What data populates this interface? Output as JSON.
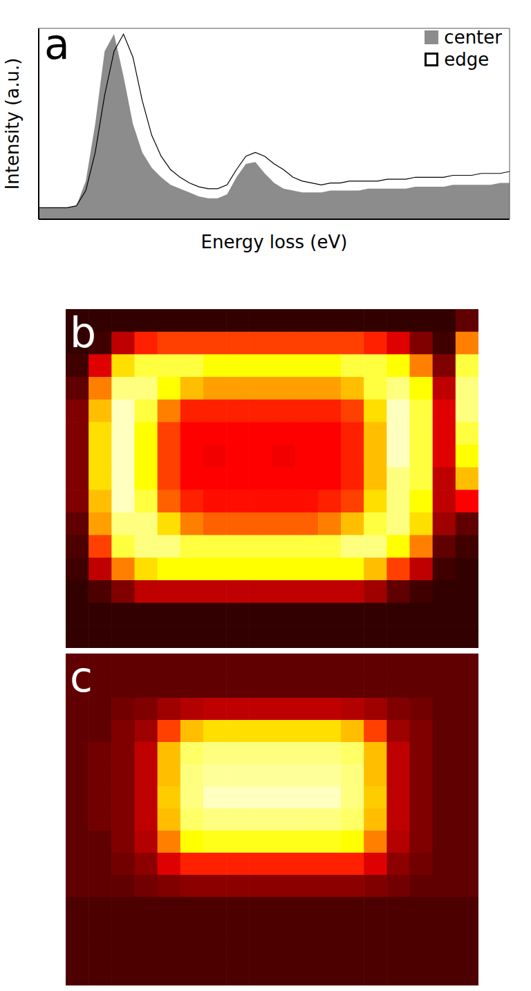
{
  "chart_data": [
    {
      "panel": "a",
      "type": "area",
      "x_label": "Energy loss (eV)",
      "y_label": "Intensity (a.u.)",
      "x": [
        0,
        2,
        4,
        6,
        8,
        10,
        12,
        14,
        16,
        18,
        20,
        22,
        24,
        26,
        28,
        30,
        32,
        34,
        36,
        38,
        40,
        42,
        44,
        46,
        48,
        50,
        52,
        54,
        56,
        58,
        60,
        62,
        64,
        66,
        68,
        70,
        72,
        74,
        76,
        78,
        80,
        82,
        84,
        86,
        88,
        90,
        92,
        94,
        96,
        98,
        100
      ],
      "xlim": [
        0,
        100
      ],
      "ylim": [
        0,
        100
      ],
      "xticks": [],
      "yticks": [],
      "tick_labels": false,
      "legend": "upper right",
      "series": [
        {
          "name": "center",
          "type": "area",
          "color": "#8c8c8c",
          "values": [
            6,
            6,
            6,
            6,
            7,
            20,
            50,
            88,
            97,
            75,
            50,
            35,
            27,
            22,
            18,
            16,
            14,
            12,
            11,
            11,
            13,
            22,
            29,
            30,
            24,
            19,
            16,
            15,
            14,
            14,
            14,
            15,
            15,
            15,
            15,
            16,
            16,
            16,
            16,
            16,
            17,
            17,
            17,
            17,
            18,
            18,
            18,
            18,
            18,
            19,
            19
          ]
        },
        {
          "name": "edge",
          "type": "line",
          "color": "#000000",
          "values": [
            6,
            6,
            6,
            6,
            7,
            15,
            35,
            65,
            88,
            97,
            85,
            62,
            44,
            33,
            26,
            22,
            19,
            17,
            16,
            16,
            18,
            26,
            33,
            35,
            33,
            29,
            26,
            22,
            20,
            19,
            18,
            19,
            19,
            20,
            20,
            20,
            20,
            21,
            21,
            21,
            22,
            22,
            22,
            22,
            23,
            23,
            23,
            24,
            24,
            24,
            25
          ]
        }
      ]
    },
    {
      "panel": "b",
      "type": "heatmap",
      "tick_labels": false,
      "zlim": [
        0,
        1
      ],
      "cells": [
        [
          0.08,
          0.08,
          0.08,
          0.08,
          0.08,
          0.08,
          0.08,
          0.08,
          0.08,
          0.08,
          0.08,
          0.08,
          0.08,
          0.08,
          0.08,
          0.08,
          0.08,
          0.15
        ],
        [
          0.08,
          0.1,
          0.3,
          0.45,
          0.5,
          0.5,
          0.5,
          0.5,
          0.5,
          0.5,
          0.5,
          0.5,
          0.5,
          0.45,
          0.35,
          0.2,
          0.1,
          0.6
        ],
        [
          0.1,
          0.35,
          0.75,
          0.85,
          0.85,
          0.85,
          0.8,
          0.8,
          0.8,
          0.8,
          0.8,
          0.8,
          0.85,
          0.85,
          0.8,
          0.6,
          0.2,
          0.85
        ],
        [
          0.15,
          0.6,
          0.9,
          0.9,
          0.8,
          0.7,
          0.65,
          0.65,
          0.65,
          0.65,
          0.65,
          0.65,
          0.7,
          0.85,
          0.9,
          0.8,
          0.3,
          0.9
        ],
        [
          0.2,
          0.7,
          0.95,
          0.85,
          0.6,
          0.45,
          0.45,
          0.45,
          0.45,
          0.45,
          0.45,
          0.45,
          0.5,
          0.75,
          0.95,
          0.85,
          0.35,
          0.9
        ],
        [
          0.2,
          0.75,
          0.95,
          0.8,
          0.5,
          0.4,
          0.4,
          0.4,
          0.4,
          0.4,
          0.4,
          0.4,
          0.45,
          0.7,
          0.95,
          0.85,
          0.35,
          0.85
        ],
        [
          0.2,
          0.75,
          0.95,
          0.8,
          0.5,
          0.4,
          0.38,
          0.4,
          0.4,
          0.38,
          0.4,
          0.4,
          0.45,
          0.7,
          0.95,
          0.85,
          0.35,
          0.8
        ],
        [
          0.2,
          0.75,
          0.95,
          0.8,
          0.5,
          0.4,
          0.4,
          0.4,
          0.4,
          0.4,
          0.4,
          0.4,
          0.45,
          0.7,
          0.9,
          0.85,
          0.3,
          0.7
        ],
        [
          0.2,
          0.7,
          0.95,
          0.85,
          0.55,
          0.45,
          0.42,
          0.42,
          0.42,
          0.42,
          0.42,
          0.45,
          0.5,
          0.75,
          0.9,
          0.8,
          0.3,
          0.4
        ],
        [
          0.15,
          0.65,
          0.9,
          0.9,
          0.75,
          0.6,
          0.55,
          0.55,
          0.55,
          0.55,
          0.55,
          0.6,
          0.7,
          0.85,
          0.9,
          0.75,
          0.25,
          0.15
        ],
        [
          0.12,
          0.5,
          0.85,
          0.9,
          0.9,
          0.85,
          0.85,
          0.85,
          0.85,
          0.85,
          0.85,
          0.85,
          0.9,
          0.9,
          0.8,
          0.6,
          0.15,
          0.1
        ],
        [
          0.1,
          0.3,
          0.6,
          0.75,
          0.8,
          0.8,
          0.8,
          0.8,
          0.8,
          0.8,
          0.8,
          0.8,
          0.8,
          0.7,
          0.5,
          0.3,
          0.1,
          0.08
        ],
        [
          0.08,
          0.12,
          0.2,
          0.3,
          0.3,
          0.3,
          0.3,
          0.3,
          0.3,
          0.3,
          0.3,
          0.3,
          0.3,
          0.25,
          0.15,
          0.1,
          0.08,
          0.08
        ],
        [
          0.08,
          0.08,
          0.08,
          0.08,
          0.08,
          0.08,
          0.08,
          0.08,
          0.08,
          0.08,
          0.08,
          0.08,
          0.08,
          0.08,
          0.08,
          0.08,
          0.08,
          0.08
        ],
        [
          0.08,
          0.08,
          0.08,
          0.08,
          0.08,
          0.08,
          0.08,
          0.08,
          0.08,
          0.08,
          0.08,
          0.08,
          0.08,
          0.08,
          0.08,
          0.08,
          0.08,
          0.08
        ]
      ]
    },
    {
      "panel": "c",
      "type": "heatmap",
      "tick_labels": false,
      "zlim": [
        0,
        1
      ],
      "cells": [
        [
          0.15,
          0.15,
          0.15,
          0.15,
          0.15,
          0.15,
          0.15,
          0.15,
          0.15,
          0.15,
          0.15,
          0.15,
          0.15,
          0.15,
          0.15,
          0.15,
          0.15,
          0.15
        ],
        [
          0.15,
          0.15,
          0.15,
          0.15,
          0.15,
          0.15,
          0.15,
          0.15,
          0.15,
          0.15,
          0.15,
          0.15,
          0.15,
          0.15,
          0.15,
          0.15,
          0.15,
          0.15
        ],
        [
          0.15,
          0.15,
          0.18,
          0.2,
          0.25,
          0.28,
          0.3,
          0.3,
          0.3,
          0.3,
          0.3,
          0.3,
          0.28,
          0.25,
          0.2,
          0.18,
          0.15,
          0.15
        ],
        [
          0.15,
          0.15,
          0.2,
          0.25,
          0.5,
          0.7,
          0.75,
          0.75,
          0.75,
          0.75,
          0.75,
          0.75,
          0.7,
          0.5,
          0.25,
          0.2,
          0.15,
          0.15
        ],
        [
          0.15,
          0.18,
          0.2,
          0.3,
          0.7,
          0.88,
          0.9,
          0.9,
          0.9,
          0.9,
          0.9,
          0.9,
          0.88,
          0.7,
          0.3,
          0.2,
          0.15,
          0.15
        ],
        [
          0.15,
          0.18,
          0.2,
          0.3,
          0.7,
          0.9,
          0.92,
          0.92,
          0.92,
          0.92,
          0.92,
          0.92,
          0.9,
          0.7,
          0.3,
          0.2,
          0.15,
          0.15
        ],
        [
          0.15,
          0.18,
          0.2,
          0.3,
          0.72,
          0.9,
          0.95,
          0.95,
          0.95,
          0.95,
          0.95,
          0.95,
          0.9,
          0.72,
          0.3,
          0.2,
          0.15,
          0.15
        ],
        [
          0.15,
          0.18,
          0.2,
          0.3,
          0.7,
          0.88,
          0.9,
          0.9,
          0.9,
          0.9,
          0.9,
          0.9,
          0.88,
          0.7,
          0.3,
          0.2,
          0.15,
          0.15
        ],
        [
          0.15,
          0.15,
          0.2,
          0.28,
          0.6,
          0.8,
          0.82,
          0.82,
          0.82,
          0.82,
          0.82,
          0.82,
          0.8,
          0.6,
          0.28,
          0.2,
          0.15,
          0.15
        ],
        [
          0.15,
          0.15,
          0.18,
          0.22,
          0.35,
          0.45,
          0.45,
          0.45,
          0.45,
          0.45,
          0.45,
          0.45,
          0.45,
          0.35,
          0.22,
          0.18,
          0.15,
          0.15
        ],
        [
          0.15,
          0.15,
          0.15,
          0.18,
          0.2,
          0.22,
          0.22,
          0.22,
          0.22,
          0.22,
          0.22,
          0.22,
          0.22,
          0.2,
          0.18,
          0.15,
          0.15,
          0.15
        ],
        [
          0.12,
          0.12,
          0.12,
          0.12,
          0.12,
          0.12,
          0.12,
          0.12,
          0.12,
          0.12,
          0.12,
          0.12,
          0.12,
          0.12,
          0.12,
          0.12,
          0.12,
          0.12
        ],
        [
          0.12,
          0.12,
          0.12,
          0.12,
          0.12,
          0.12,
          0.12,
          0.12,
          0.12,
          0.12,
          0.12,
          0.12,
          0.12,
          0.12,
          0.12,
          0.12,
          0.12,
          0.12
        ],
        [
          0.12,
          0.12,
          0.12,
          0.12,
          0.12,
          0.12,
          0.12,
          0.12,
          0.12,
          0.12,
          0.12,
          0.12,
          0.12,
          0.12,
          0.12,
          0.12,
          0.12,
          0.12
        ],
        [
          0.12,
          0.12,
          0.12,
          0.12,
          0.12,
          0.12,
          0.12,
          0.12,
          0.12,
          0.12,
          0.12,
          0.12,
          0.12,
          0.12,
          0.12,
          0.12,
          0.12,
          0.12
        ]
      ]
    }
  ]
}
